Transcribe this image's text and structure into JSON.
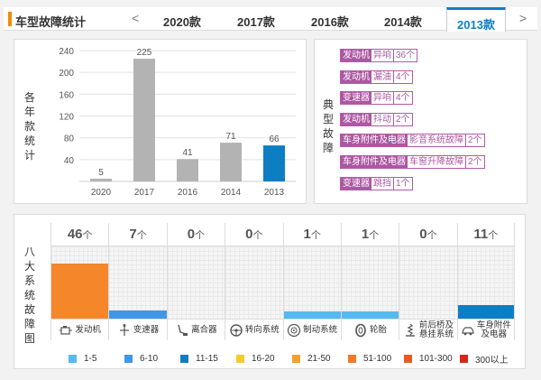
{
  "header": {
    "title": "车型故障统计",
    "accent_color": "#f08c00",
    "prev_arrow": "<",
    "next_arrow": ">",
    "tabs": [
      {
        "label": "2020款",
        "active": false
      },
      {
        "label": "2017款",
        "active": false
      },
      {
        "label": "2016款",
        "active": false
      },
      {
        "label": "2014款",
        "active": false
      },
      {
        "label": "2013款",
        "active": true
      }
    ]
  },
  "stats": {
    "side_label": "各年款统计"
  },
  "chart_data": {
    "type": "bar",
    "categories": [
      "2020",
      "2017",
      "2016",
      "2014",
      "2013"
    ],
    "values": [
      5,
      225,
      41,
      71,
      66
    ],
    "colors": [
      "#b3b3b3",
      "#b3b3b3",
      "#b3b3b3",
      "#b3b3b3",
      "#0d7ec4"
    ],
    "highlight": "2013",
    "ylim": [
      0,
      240
    ],
    "yticks": [
      40,
      80,
      120,
      160,
      200,
      240
    ],
    "grid": true
  },
  "typical": {
    "side_label": "典型故障",
    "faults": [
      {
        "component": "发动机",
        "fault": "异响",
        "count": "36个"
      },
      {
        "component": "发动机",
        "fault": "漏油",
        "count": "4个"
      },
      {
        "component": "变速器",
        "fault": "异响",
        "count": "4个"
      },
      {
        "component": "发动机",
        "fault": "抖动",
        "count": "2个"
      },
      {
        "component": "车身附件及电器",
        "fault": "影音系统故障",
        "count": "2个"
      },
      {
        "component": "车身附件及电器",
        "fault": "车窗升降故障",
        "count": "2个"
      },
      {
        "component": "变速器",
        "fault": "跳挡",
        "count": "1个"
      }
    ]
  },
  "systems": {
    "side_label": "八大系统故障图",
    "unit": "个",
    "max_level": 60,
    "items": [
      {
        "name": "发动机",
        "count": "46",
        "level": 46,
        "color": "#f5862a",
        "icon": "engine-icon"
      },
      {
        "name": "变速器",
        "count": "7",
        "level": 7,
        "color": "#3f96e8",
        "icon": "gear-shift-icon"
      },
      {
        "name": "离合器",
        "count": "0",
        "level": 0,
        "color": "#3f96e8",
        "icon": "clutch-pedal-icon"
      },
      {
        "name": "转向系统",
        "count": "0",
        "level": 0,
        "color": "#3f96e8",
        "icon": "steering-wheel-icon"
      },
      {
        "name": "制动系统",
        "count": "1",
        "level": 1,
        "color": "#55baf0",
        "icon": "brake-disc-icon"
      },
      {
        "name": "轮胎",
        "count": "1",
        "level": 1,
        "color": "#55baf0",
        "icon": "tire-icon"
      },
      {
        "name": "前后桥及\n悬挂系统",
        "count": "0",
        "level": 0,
        "color": "#3f96e8",
        "icon": "suspension-icon"
      },
      {
        "name": "车身附件\n及电器",
        "count": "11",
        "level": 11,
        "color": "#0d7ec4",
        "icon": "car-body-icon"
      }
    ]
  },
  "legend": [
    {
      "label": "1-5",
      "color": "#55baf0"
    },
    {
      "label": "6-10",
      "color": "#3f96e8"
    },
    {
      "label": "11-15",
      "color": "#0d7ec4"
    },
    {
      "label": "16-20",
      "color": "#f5cc2a"
    },
    {
      "label": "21-50",
      "color": "#f5a02a"
    },
    {
      "label": "51-100",
      "color": "#f07a2a"
    },
    {
      "label": "101-300",
      "color": "#e85a20"
    },
    {
      "label": "300以上",
      "color": "#d9261c"
    }
  ]
}
